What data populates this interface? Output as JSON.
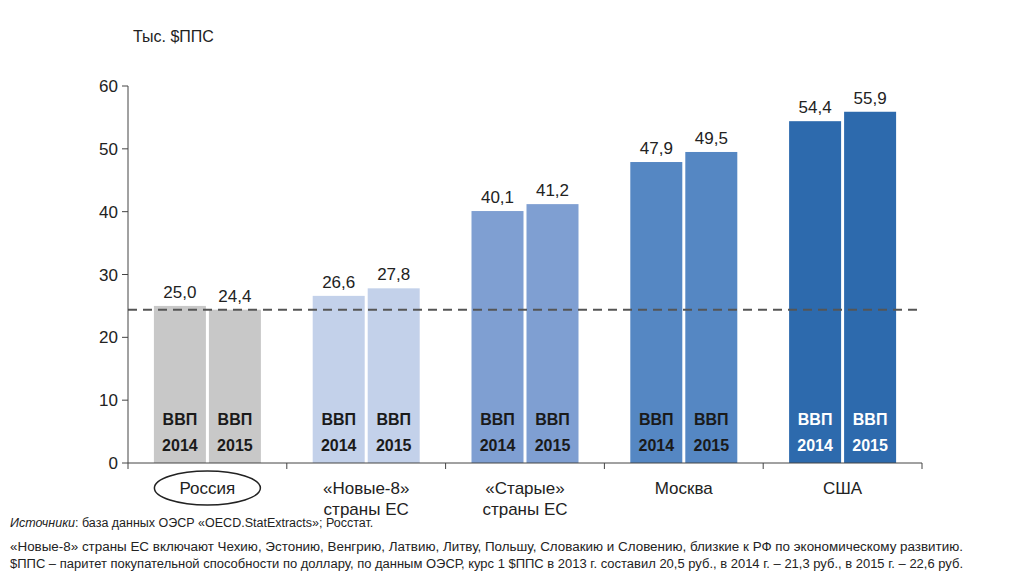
{
  "chart_data": {
    "type": "bar",
    "y_axis_label": "Тыс. $ППС",
    "categories": [
      "Россия",
      "«Новые-8»\nстраны ЕС",
      "«Старые»\nстраны ЕС",
      "Москва",
      "США"
    ],
    "series": [
      {
        "name": "ВВП 2014",
        "values": [
          25.0,
          26.6,
          40.1,
          47.9,
          54.4
        ],
        "value_labels": [
          "25,0",
          "26,6",
          "40,1",
          "47,9",
          "54,4"
        ],
        "colors": [
          "#c8c8c8",
          "#c3d1ea",
          "#7f9fd2",
          "#5587c3",
          "#2d6aad"
        ]
      },
      {
        "name": "ВВП 2015",
        "values": [
          24.4,
          27.8,
          41.2,
          49.5,
          55.9
        ],
        "value_labels": [
          "24,4",
          "27,8",
          "41,2",
          "49,5",
          "55,9"
        ],
        "colors": [
          "#c8c8c8",
          "#c3d1ea",
          "#7f9fd2",
          "#5587c3",
          "#2d6aad"
        ]
      }
    ],
    "ylim": [
      0,
      60
    ],
    "yticks": [
      0,
      10,
      20,
      30,
      40,
      50,
      60
    ],
    "grid": false,
    "data_labels": true,
    "reference_line": 24.4,
    "source": {
      "label": "Источники",
      "text": ": база данных ОЭСР «OECD.StatExtracts»; Росстат."
    },
    "notes": [
      "«Новые-8» страны ЕС включают Чехию, Эстонию, Венгрию, Латвию, Литву, Польшу, Словакию и Словению, близкие к РФ по экономическому развитию.",
      "$ППС – паритет покупательной способности по доллару, по данным ОЭСР, курс 1 $ППС в 2013 г. составил 20,5 руб., в 2014 г. – 21,3 руб., в 2015 г. – 22,6 руб."
    ]
  }
}
